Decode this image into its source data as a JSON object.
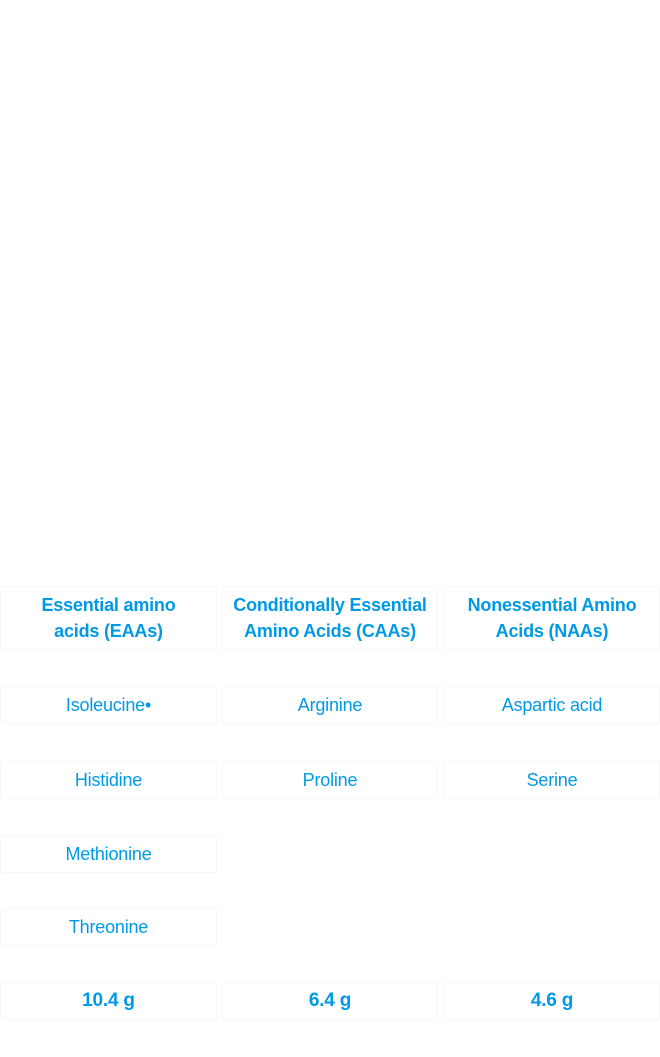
{
  "table": {
    "headers": [
      {
        "line1": "Essential amino",
        "line2": "acids (EAAs)"
      },
      {
        "line1": "Conditionally Essential",
        "line2": "Amino Acids (CAAs)"
      },
      {
        "line1": "Nonessential Amino",
        "line2": "Acids (NAAs)"
      }
    ],
    "rows": [
      [
        "Isoleucine•",
        "Arginine",
        "Aspartic acid"
      ],
      [
        "Histidine",
        "Proline",
        "Serine"
      ],
      [
        "Methionine",
        "",
        ""
      ],
      [
        "Threonine",
        "",
        ""
      ]
    ],
    "totals": [
      "10.4 g",
      "6.4 g",
      "4.6 g"
    ]
  },
  "colors": {
    "text": "#0099e6",
    "cell_border": "#f6f6f6",
    "background": "#ffffff"
  }
}
